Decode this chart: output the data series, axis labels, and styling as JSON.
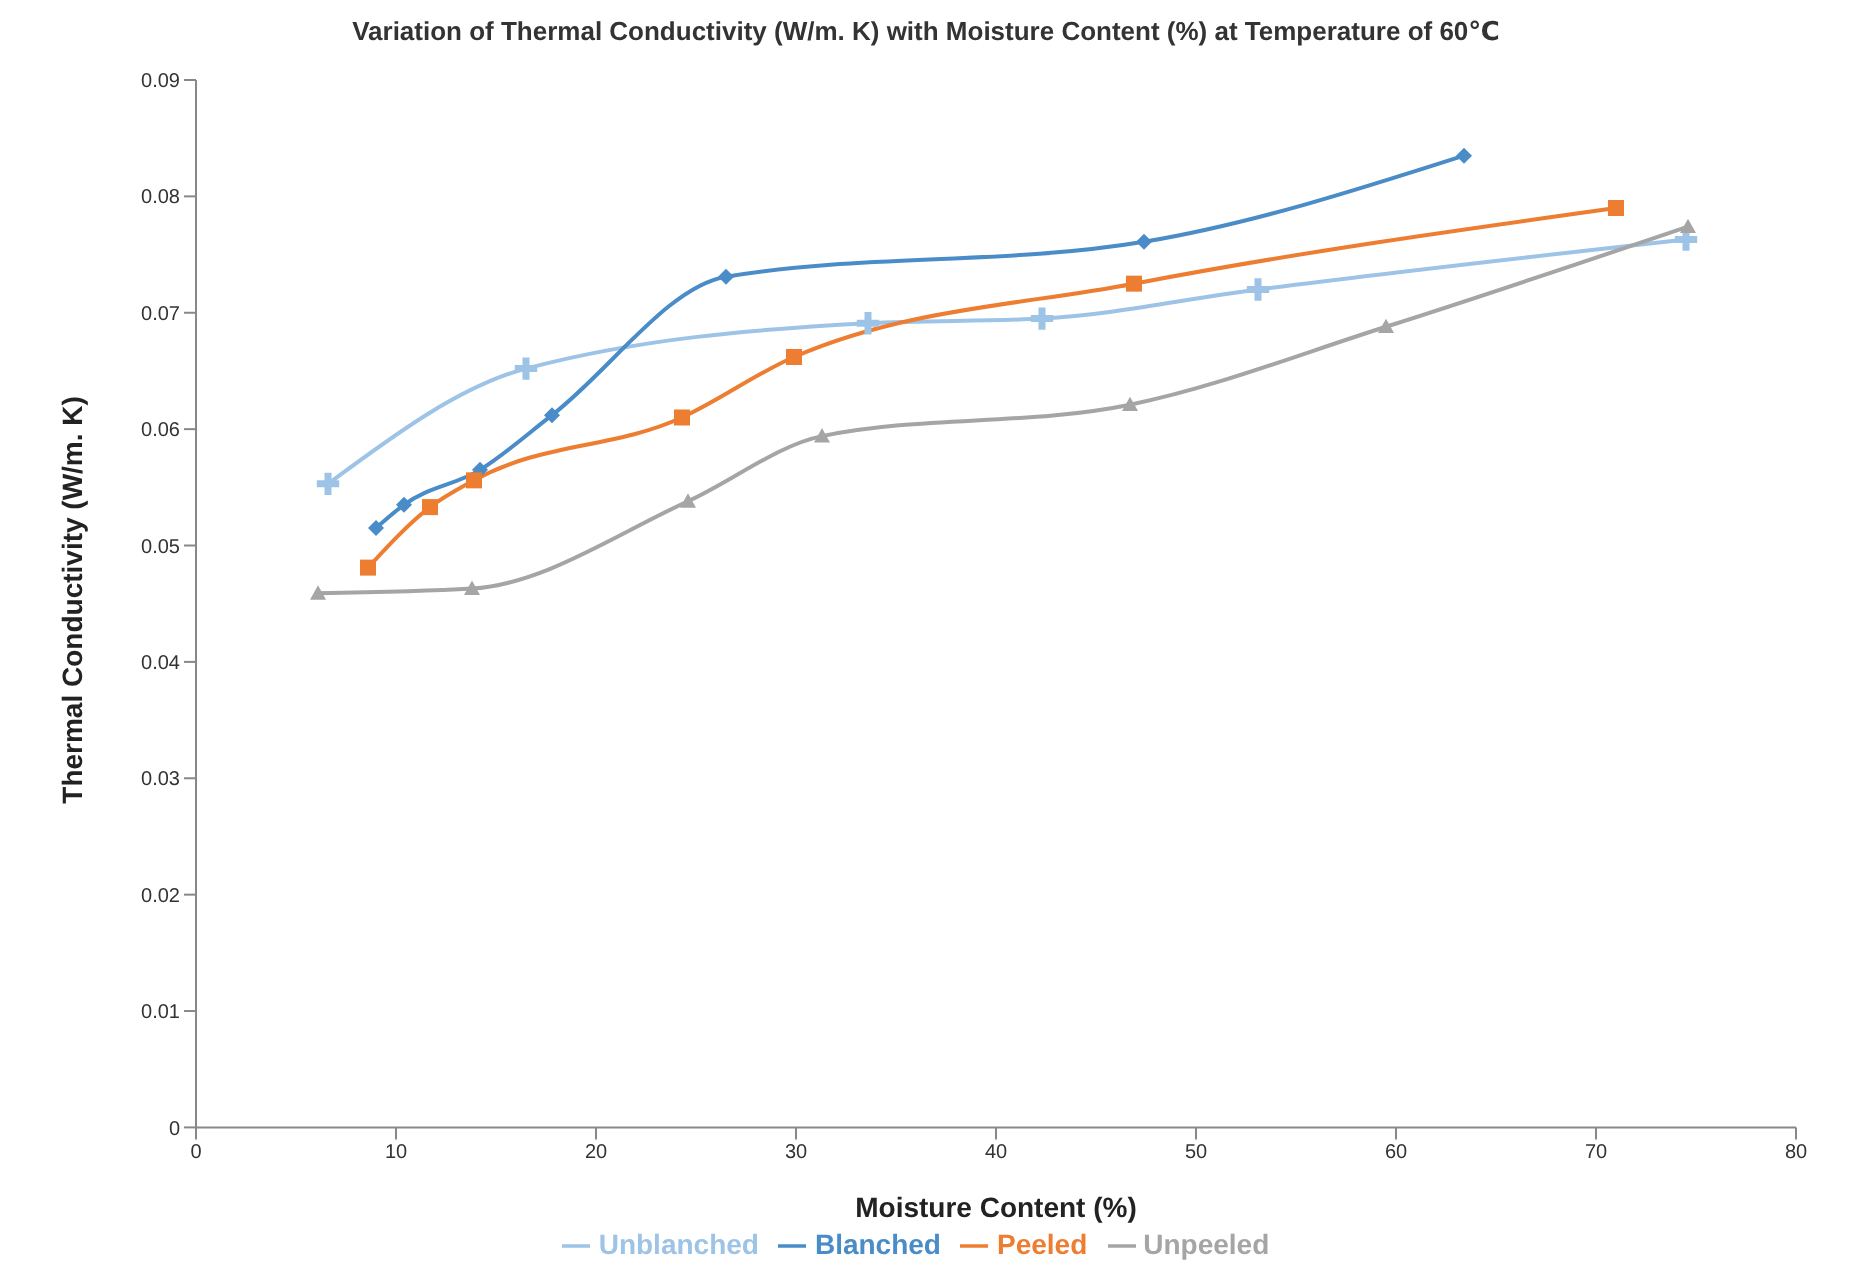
{
  "chart_data": {
    "type": "line",
    "title": "Variation of Thermal Conductivity (W/m. K) with Moisture Content (%) at Temperature of 60℃",
    "xlabel": "Moisture Content (%)",
    "ylabel": "Thermal Conductivity (W/m. K)",
    "xlim": [
      0,
      80
    ],
    "xticks": [
      0,
      10,
      20,
      30,
      40,
      50,
      60,
      70,
      80
    ],
    "ylim": [
      0,
      0.09
    ],
    "yticks": [
      {
        "value": 0,
        "label": "0"
      },
      {
        "value": 0.01,
        "label": "0.01"
      },
      {
        "value": 0.02,
        "label": "0.02"
      },
      {
        "value": 0.03,
        "label": "0.03"
      },
      {
        "value": 0.04,
        "label": "0.04"
      },
      {
        "value": 0.05,
        "label": "0.05"
      },
      {
        "value": 0.06,
        "label": "0.06"
      },
      {
        "value": 0.07,
        "label": "0.07"
      },
      {
        "value": 0.08,
        "label": "0.08"
      },
      {
        "value": 0.09,
        "label": "0.09"
      }
    ],
    "grid": false,
    "legend": "bottom",
    "series": [
      {
        "name": "Unblanched",
        "color": "#9dc3e6",
        "marker": "cross",
        "x": [
          6.6,
          16.5,
          33.6,
          42.3,
          53.1,
          74.5
        ],
        "values": [
          0.0553,
          0.0652,
          0.0691,
          0.0695,
          0.072,
          0.0763
        ]
      },
      {
        "name": "Blanched",
        "color": "#4a8cc8",
        "marker": "diamond",
        "x": [
          9.0,
          10.4,
          14.2,
          17.8,
          26.5,
          47.4,
          63.4
        ],
        "values": [
          0.0515,
          0.0535,
          0.0565,
          0.0612,
          0.0731,
          0.0761,
          0.0835
        ]
      },
      {
        "name": "Peeled",
        "color": "#ed7d31",
        "marker": "square",
        "x": [
          8.6,
          11.7,
          13.9,
          24.3,
          29.9,
          46.9,
          71.0
        ],
        "values": [
          0.0481,
          0.0533,
          0.0556,
          0.061,
          0.0662,
          0.0725,
          0.079
        ]
      },
      {
        "name": "Unpeeled",
        "color": "#a5a5a5",
        "marker": "triangle",
        "x": [
          6.1,
          13.8,
          24.6,
          31.3,
          46.7,
          59.5,
          74.6
        ],
        "values": [
          0.0459,
          0.0463,
          0.0538,
          0.0594,
          0.0621,
          0.0688,
          0.0774
        ]
      }
    ]
  }
}
